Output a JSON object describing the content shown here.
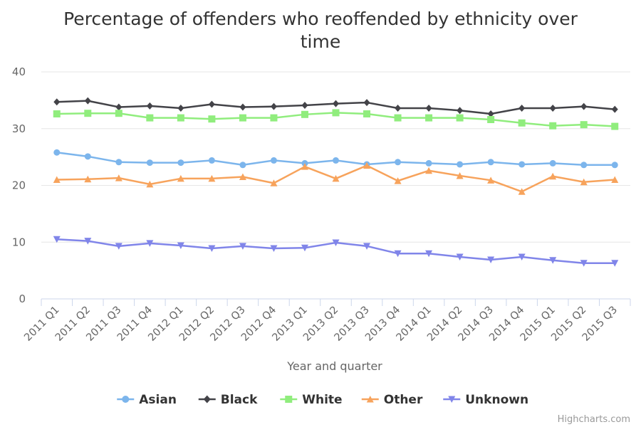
{
  "chart_data": {
    "type": "line",
    "title_line1": "Percentage of offenders who reoffended by ethnicity over",
    "title_line2": "time",
    "xlabel": "Year and quarter",
    "ylabel": "",
    "ylim": [
      0,
      40
    ],
    "yticks": [
      0,
      10,
      20,
      30,
      40
    ],
    "grid": true,
    "legend_position": "bottom-center",
    "categories": [
      "2011 Q1",
      "2011 Q2",
      "2011 Q3",
      "2011 Q4",
      "2012 Q1",
      "2012 Q2",
      "2012 Q3",
      "2012 Q4",
      "2013 Q1",
      "2013 Q2",
      "2013 Q3",
      "2013 Q4",
      "2014 Q1",
      "2014 Q2",
      "2014 Q3",
      "2014 Q4",
      "2015 Q1",
      "2015 Q2",
      "2015 Q3"
    ],
    "series": [
      {
        "name": "Asian",
        "color": "#7cb5ec",
        "marker": "circle",
        "values": [
          25.8,
          25.1,
          24.1,
          24.0,
          24.0,
          24.4,
          23.6,
          24.4,
          23.9,
          24.4,
          23.7,
          24.1,
          23.9,
          23.7,
          24.1,
          23.7,
          23.9,
          23.6,
          23.6
        ]
      },
      {
        "name": "Black",
        "color": "#434348",
        "marker": "diamond",
        "values": [
          34.7,
          34.9,
          33.8,
          34.0,
          33.6,
          34.3,
          33.8,
          33.9,
          34.1,
          34.4,
          34.6,
          33.6,
          33.6,
          33.2,
          32.6,
          33.6,
          33.6,
          33.9,
          33.4
        ]
      },
      {
        "name": "White",
        "color": "#90ed7d",
        "marker": "square",
        "values": [
          32.6,
          32.7,
          32.7,
          31.9,
          31.9,
          31.7,
          31.9,
          31.9,
          32.5,
          32.8,
          32.6,
          31.9,
          31.9,
          31.9,
          31.6,
          31.0,
          30.5,
          30.7,
          30.4
        ]
      },
      {
        "name": "Other",
        "color": "#f7a35c",
        "marker": "triangle",
        "values": [
          21.0,
          21.1,
          21.3,
          20.2,
          21.2,
          21.2,
          21.5,
          20.4,
          23.3,
          21.2,
          23.5,
          20.8,
          22.6,
          21.7,
          20.9,
          18.9,
          21.6,
          20.6,
          21.0
        ]
      },
      {
        "name": "Unknown",
        "color": "#8085e9",
        "marker": "triangle-down",
        "values": [
          10.5,
          10.2,
          9.3,
          9.8,
          9.4,
          8.9,
          9.3,
          8.9,
          9.0,
          9.9,
          9.3,
          8.0,
          8.0,
          7.4,
          6.9,
          7.4,
          6.8,
          6.3,
          6.3
        ]
      }
    ]
  },
  "credits": "Highcharts.com"
}
